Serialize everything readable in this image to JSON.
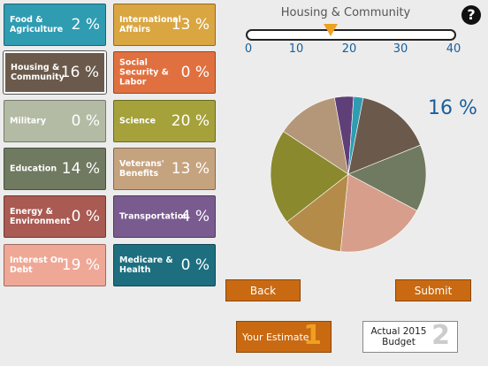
{
  "categories": [
    {
      "label": "Food & Agriculture",
      "pct": "2 %",
      "color": "#2f9cb2",
      "value": 2
    },
    {
      "label": "Housing & Community",
      "pct": "16 %",
      "color": "#6b5a4b",
      "value": 16
    },
    {
      "label": "Military",
      "pct": "0 %",
      "color": "#b4bba5",
      "value": 0
    },
    {
      "label": "Education",
      "pct": "14 %",
      "color": "#6f7a60",
      "value": 14
    },
    {
      "label": "Energy & Environment",
      "pct": "0 %",
      "color": "#a95a52",
      "value": 0
    },
    {
      "label": "Interest On Debt",
      "pct": "19 %",
      "color": "#efa896",
      "value": 19
    },
    {
      "label": "International Affairs",
      "pct": "13 %",
      "color": "#d9a642",
      "value": 13
    },
    {
      "label": "Social Security & Labor",
      "pct": "0 %",
      "color": "#e0703f",
      "value": 0
    },
    {
      "label": "Science",
      "pct": "20 %",
      "color": "#a5a13b",
      "value": 20
    },
    {
      "label": "Veterans' Benefits",
      "pct": "13 %",
      "color": "#c6a37f",
      "value": 13
    },
    {
      "label": "Transportation",
      "pct": "4 %",
      "color": "#7a5b8f",
      "value": 4
    },
    {
      "label": "Medicare & Health",
      "pct": "0 %",
      "color": "#1d6f7f",
      "value": 0
    }
  ],
  "slider": {
    "title": "Housing & Community",
    "ticks": [
      "0",
      "10",
      "20",
      "30",
      "40"
    ],
    "max": 40,
    "value": 16
  },
  "selected_percent": "16 %",
  "help_label": "?",
  "buttons": {
    "back": "Back",
    "submit": "Submit"
  },
  "estimate": {
    "label": "Your Estimate",
    "number": "1"
  },
  "actual": {
    "label": "Actual 2015 Budget",
    "number": "2"
  },
  "chart_data": {
    "type": "pie",
    "categories": [
      "Transportation",
      "Food & Agriculture",
      "Housing & Community",
      "Education",
      "Interest On Debt",
      "International Affairs",
      "Science",
      "Veterans' Benefits"
    ],
    "values": [
      4,
      2,
      16,
      14,
      19,
      13,
      20,
      13
    ],
    "colors": [
      "#5f3f77",
      "#2f9cb2",
      "#6b5a4b",
      "#6f7a60",
      "#d79e8c",
      "#b58b4a",
      "#8a892e",
      "#b49779"
    ]
  }
}
